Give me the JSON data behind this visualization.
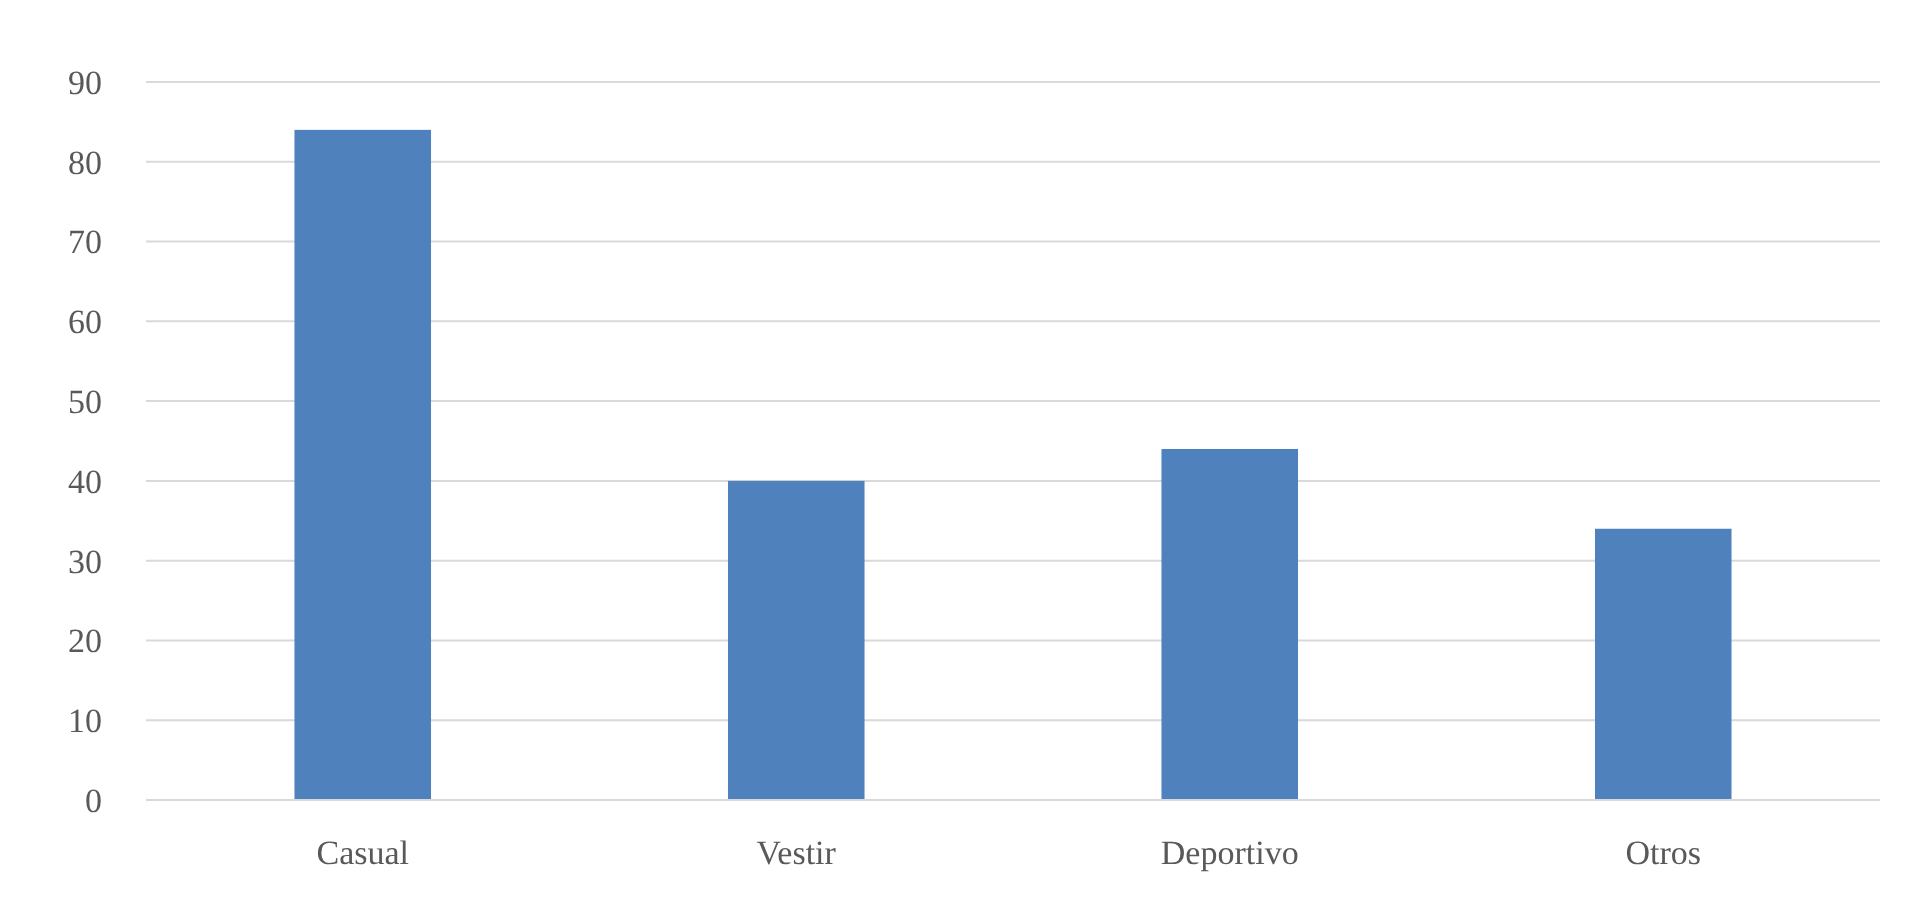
{
  "chart_data": {
    "type": "bar",
    "categories": [
      "Casual",
      "Vestir",
      "Deportivo",
      "Otros"
    ],
    "values": [
      84,
      40,
      44,
      34
    ],
    "color": "#4f81bd",
    "ylim": [
      0,
      90
    ],
    "yticks": [
      0,
      10,
      20,
      30,
      40,
      50,
      60,
      70,
      80,
      90
    ],
    "grid": "y"
  }
}
